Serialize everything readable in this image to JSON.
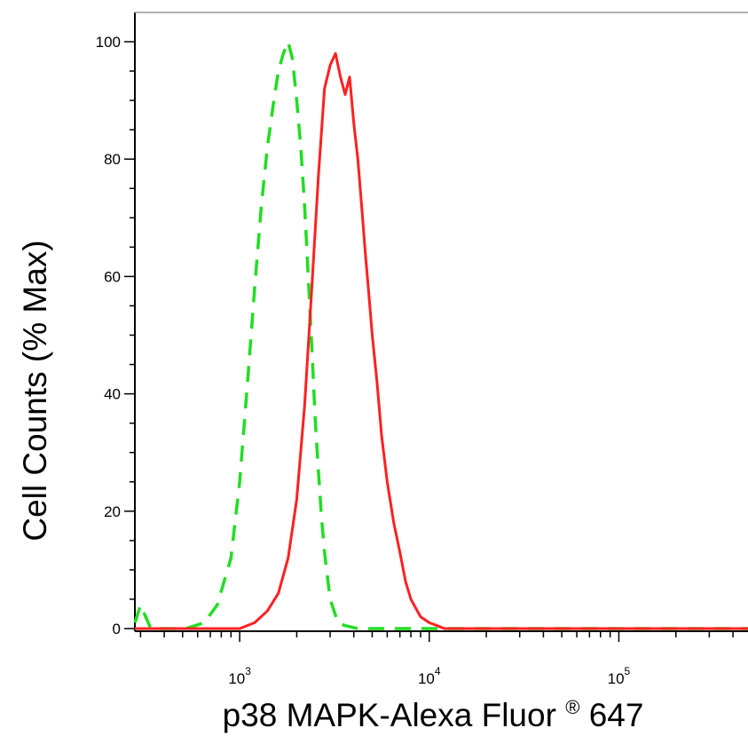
{
  "chart_data": {
    "type": "line",
    "xlabel": "p38 MAPK-Alexa Fluor",
    "xlabel_suffix": "647",
    "xlabel_mark": "®",
    "ylabel": "Cell Counts (% Max)",
    "x_scale": "log",
    "xlim": [
      280,
      480000
    ],
    "ylim": [
      0,
      100
    ],
    "y_ticks": [
      0,
      20,
      40,
      60,
      80,
      100
    ],
    "x_ticks": [
      {
        "value": 1000,
        "base": "10",
        "exp": "3"
      },
      {
        "value": 10000,
        "base": "10",
        "exp": "4"
      },
      {
        "value": 100000,
        "base": "10",
        "exp": "5"
      }
    ],
    "grid": false,
    "series": [
      {
        "style": "dashed",
        "color": "#22dd22",
        "x": [
          280,
          300,
          340,
          420,
          520,
          650,
          760,
          900,
          1000,
          1100,
          1200,
          1300,
          1400,
          1500,
          1600,
          1700,
          1800,
          1900,
          2000,
          2100,
          2200,
          2300,
          2400,
          2500,
          2600,
          2700,
          2800,
          3000,
          3300,
          3600,
          4200,
          5000,
          6000,
          8000,
          12000,
          20000,
          50000,
          100000,
          200000,
          480000
        ],
        "y": [
          1,
          4,
          0,
          0,
          0,
          1,
          4,
          12,
          25,
          42,
          58,
          72,
          82,
          89,
          95,
          98,
          100,
          97,
          90,
          82,
          72,
          60,
          48,
          36,
          27,
          19,
          13,
          5,
          1,
          0.5,
          0,
          0,
          0,
          0,
          0,
          0,
          0,
          0,
          0,
          0
        ]
      },
      {
        "style": "solid",
        "color": "#ff2020",
        "x": [
          280,
          500,
          800,
          1000,
          1200,
          1400,
          1600,
          1800,
          2000,
          2200,
          2400,
          2600,
          2800,
          3000,
          3200,
          3400,
          3600,
          3800,
          4000,
          4200,
          4400,
          4600,
          4800,
          5000,
          5300,
          5600,
          6000,
          6500,
          7000,
          7500,
          8000,
          9000,
          10000,
          11000,
          12000,
          15000,
          20000,
          50000,
          100000,
          200000,
          480000
        ],
        "y": [
          0,
          0,
          0,
          0,
          1,
          3,
          6,
          12,
          22,
          38,
          58,
          77,
          92,
          96,
          98,
          94,
          91,
          94,
          86,
          80,
          72,
          64,
          57,
          50,
          42,
          33,
          25,
          18,
          13,
          8,
          5,
          2,
          1,
          0.5,
          0,
          0,
          0,
          0,
          0,
          0,
          0
        ]
      }
    ]
  }
}
